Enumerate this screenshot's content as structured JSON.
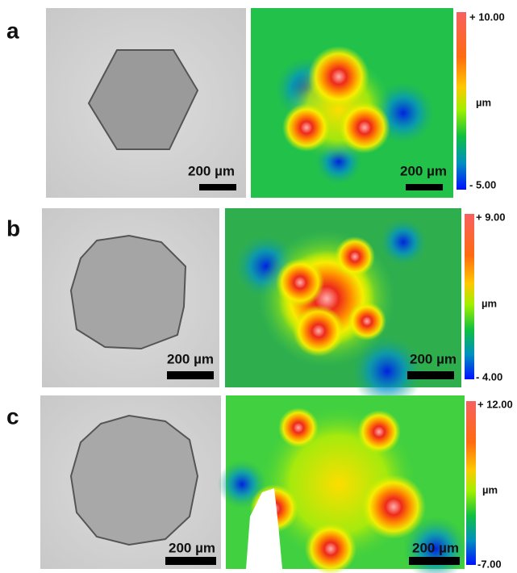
{
  "panels": [
    {
      "label": "a",
      "micrograph_scale": "200 µm",
      "map_scale": "200 µm",
      "colorbar": {
        "max": "+ 10.00",
        "unit": "µm",
        "min": "- 5.00"
      }
    },
    {
      "label": "b",
      "micrograph_scale": "200 µm",
      "map_scale": "200 µm",
      "colorbar": {
        "max": "+ 9.00",
        "unit": "µm",
        "min": "- 4.00"
      }
    },
    {
      "label": "c",
      "micrograph_scale": "200 µm",
      "map_scale": "200 µm",
      "colorbar": {
        "max": "+ 12.00",
        "unit": "µm",
        "min": "-7.00"
      }
    }
  ]
}
